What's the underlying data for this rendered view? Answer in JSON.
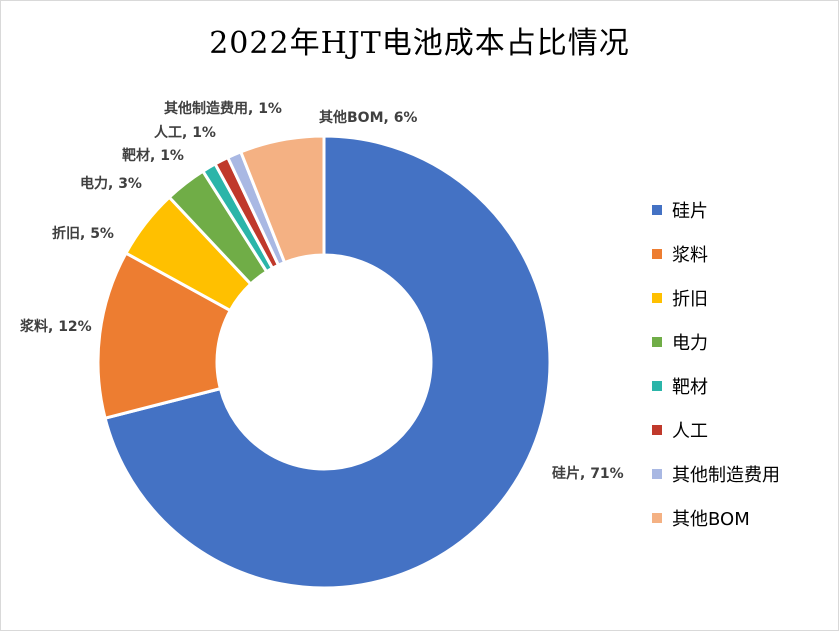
{
  "chart_data": {
    "type": "pie",
    "variant": "doughnut",
    "title": "2022年HJT电池成本占比情况",
    "categories": [
      "硅片",
      "浆料",
      "折旧",
      "电力",
      "靶材",
      "人工",
      "其他制造费用",
      "其他BOM"
    ],
    "values": [
      71,
      12,
      5,
      3,
      1,
      1,
      1,
      6
    ],
    "data_labels": [
      "硅片, 71%",
      "浆料, 12%",
      "折旧, 5%",
      "电力, 3%",
      "靶材, 1%",
      "人工, 1%",
      "其他制造费用, 1%",
      "其他BOM, 6%"
    ],
    "colors": [
      "#4472C4",
      "#ED7D31",
      "#FFC000",
      "#70AD47",
      "#2BB5A9",
      "#C0392B",
      "#A9B8E3",
      "#F4B183"
    ],
    "legend_position": "right",
    "start_angle": "top, clockwise"
  }
}
